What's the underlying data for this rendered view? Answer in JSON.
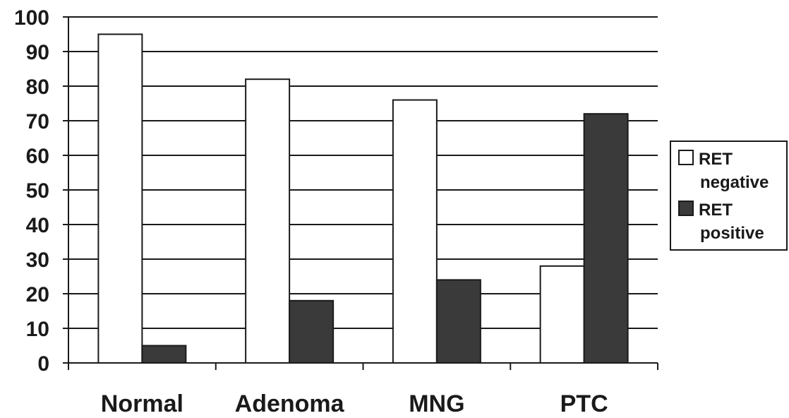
{
  "chart_data": {
    "type": "bar",
    "categories": [
      "Normal",
      "Adenoma",
      "MNG",
      "PTC"
    ],
    "series": [
      {
        "name": "RET negative",
        "values": [
          95,
          82,
          76,
          28
        ],
        "color": "#ffffff"
      },
      {
        "name": "RET positive",
        "values": [
          5,
          18,
          24,
          72
        ],
        "color": "#3a3a3a"
      }
    ],
    "y_ticks": [
      "0",
      "10",
      "20",
      "30",
      "40",
      "50",
      "60",
      "70",
      "80",
      "90",
      "100"
    ],
    "ylim": [
      0,
      100
    ],
    "grid": true,
    "legend": {
      "placement": "right",
      "entries": [
        {
          "line1": "RET",
          "line2": "negative"
        },
        {
          "line1": "RET",
          "line2": "positive"
        }
      ]
    },
    "title": "",
    "xlabel": "",
    "ylabel": ""
  }
}
